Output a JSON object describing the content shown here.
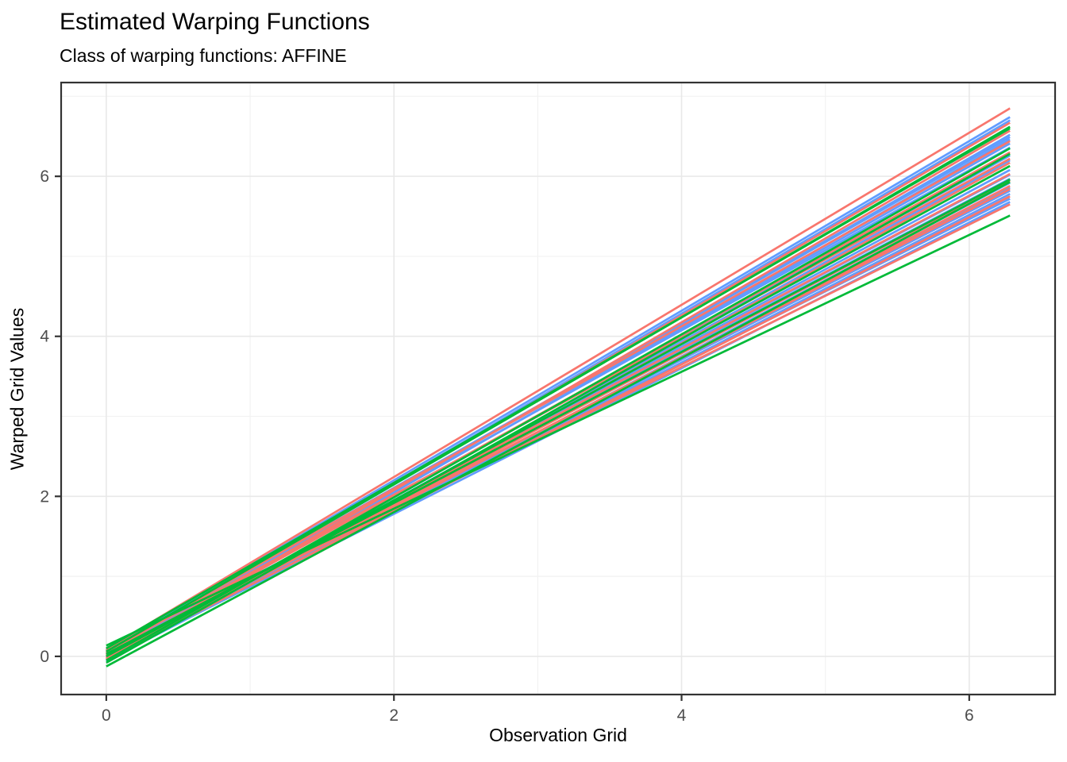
{
  "title": "Estimated Warping Functions",
  "subtitle": "Class of warping functions: AFFINE",
  "chart_data": {
    "type": "line",
    "title": "Estimated Warping Functions",
    "subtitle": "Class of warping functions: AFFINE",
    "xlabel": "Observation Grid",
    "ylabel": "Warped Grid Values",
    "x_domain": [
      0,
      6.2832
    ],
    "xlim": [
      -0.314,
      6.597
    ],
    "ylim": [
      -0.477,
      7.172
    ],
    "x_major_ticks": [
      0,
      2,
      4,
      6
    ],
    "x_minor_ticks": [
      1,
      3,
      5
    ],
    "y_major_ticks": [
      0,
      2,
      4,
      6
    ],
    "y_minor_ticks": [
      1,
      3,
      5,
      7
    ],
    "grid": true,
    "legend_position": "none",
    "style": {
      "panel_background": "#ffffff",
      "panel_border": "#333333",
      "grid_major": "#e8e8e8",
      "grid_minor": "#f2f2f2",
      "tick_mark": "#333333",
      "tick_label_color": "#4d4d4d",
      "line_width": 2.7
    },
    "palette": {
      "red": "#F8766D",
      "green": "#00BA38",
      "blue": "#619CFF"
    },
    "lines": [
      {
        "group": "blue",
        "y_start": 0.05,
        "y_end": 6.7
      },
      {
        "group": "blue",
        "y_start": 0.08,
        "y_end": 6.74
      },
      {
        "group": "blue",
        "y_start": 0.02,
        "y_end": 6.52
      },
      {
        "group": "blue",
        "y_start": 0.06,
        "y_end": 6.49
      },
      {
        "group": "blue",
        "y_start": -0.01,
        "y_end": 6.46
      },
      {
        "group": "blue",
        "y_start": 0.03,
        "y_end": 6.41
      },
      {
        "group": "blue",
        "y_start": 0.07,
        "y_end": 6.36
      },
      {
        "group": "blue",
        "y_start": -0.03,
        "y_end": 6.2
      },
      {
        "group": "blue",
        "y_start": 0.0,
        "y_end": 6.08
      },
      {
        "group": "blue",
        "y_start": 0.04,
        "y_end": 5.97
      },
      {
        "group": "blue",
        "y_start": -0.05,
        "y_end": 5.92
      },
      {
        "group": "blue",
        "y_start": 0.01,
        "y_end": 5.82
      },
      {
        "group": "blue",
        "y_start": -0.02,
        "y_end": 5.78
      },
      {
        "group": "blue",
        "y_start": 0.05,
        "y_end": 5.72
      },
      {
        "group": "blue",
        "y_start": -0.04,
        "y_end": 5.68
      },
      {
        "group": "blue",
        "y_start": 0.02,
        "y_end": 6.02
      },
      {
        "group": "blue",
        "y_start": -0.06,
        "y_end": 5.86
      },
      {
        "group": "blue",
        "y_start": 0.03,
        "y_end": 6.26
      },
      {
        "group": "red",
        "y_start": 0.09,
        "y_end": 6.85
      },
      {
        "group": "red",
        "y_start": 0.04,
        "y_end": 6.67
      },
      {
        "group": "red",
        "y_start": -0.02,
        "y_end": 6.57
      },
      {
        "group": "red",
        "y_start": 0.01,
        "y_end": 6.3
      },
      {
        "group": "red",
        "y_start": 0.06,
        "y_end": 6.22
      },
      {
        "group": "red",
        "y_start": -0.04,
        "y_end": 6.17
      },
      {
        "group": "red",
        "y_start": 0.02,
        "y_end": 6.03
      },
      {
        "group": "red",
        "y_start": 0.0,
        "y_end": 5.95
      },
      {
        "group": "red",
        "y_start": -0.01,
        "y_end": 5.88
      },
      {
        "group": "red",
        "y_start": 0.03,
        "y_end": 5.84
      },
      {
        "group": "red",
        "y_start": -0.03,
        "y_end": 5.75
      },
      {
        "group": "red",
        "y_start": 0.05,
        "y_end": 5.65
      },
      {
        "group": "red",
        "y_start": 0.07,
        "y_end": 6.44
      },
      {
        "group": "green",
        "y_start": 0.135,
        "y_end": 5.51
      },
      {
        "group": "green",
        "y_start": -0.125,
        "y_end": 5.93
      },
      {
        "group": "green",
        "y_start": 0.1,
        "y_end": 6.6
      },
      {
        "group": "green",
        "y_start": -0.08,
        "y_end": 6.28
      },
      {
        "group": "green",
        "y_start": 0.0,
        "y_end": 6.13
      },
      {
        "group": "green",
        "y_start": 0.03,
        "y_end": 5.96
      },
      {
        "group": "green",
        "y_start": -0.05,
        "y_end": 6.35
      },
      {
        "group": "green",
        "y_start": 0.06,
        "y_end": 6.62
      }
    ]
  }
}
